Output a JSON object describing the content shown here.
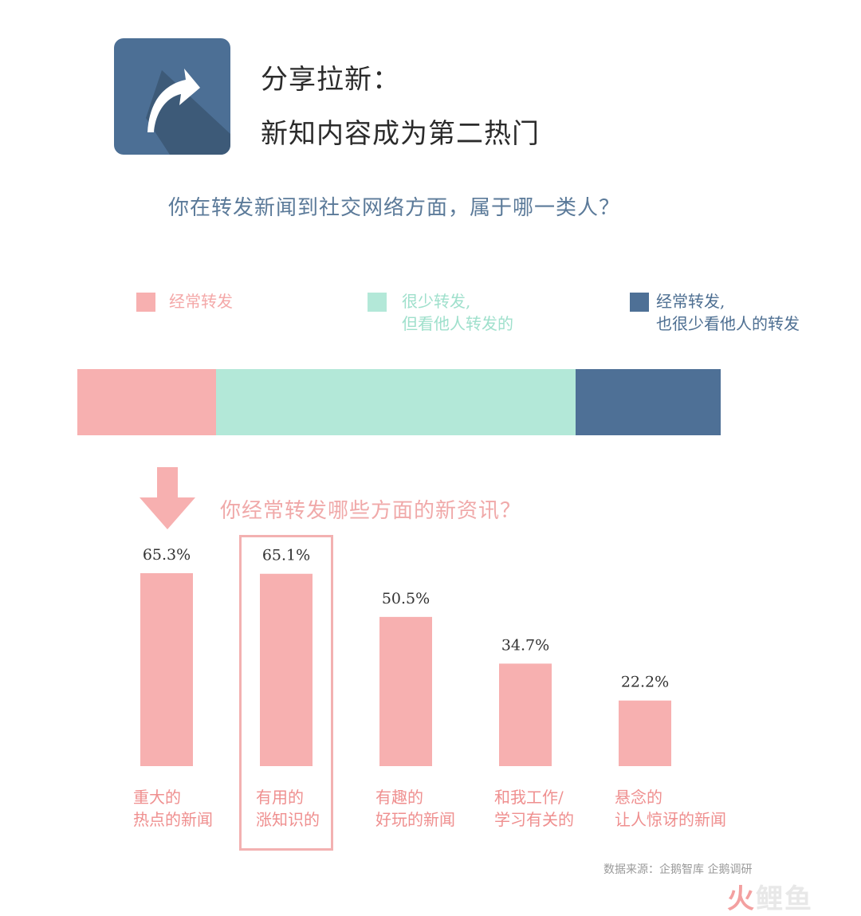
{
  "header": {
    "title_line1": "分享拉新：",
    "title_line2": "新知内容成为第二热门"
  },
  "question1": "你在转发新闻到社交网络方面，属于哪一类人？",
  "legend": [
    {
      "lines": [
        "经常转发"
      ],
      "color": "#f7b0b0",
      "text_color": "#f4a8a8"
    },
    {
      "lines": [
        "很少转发,",
        "但看他人转发的"
      ],
      "color": "#b3e8d8",
      "text_color": "#9fe0cc"
    },
    {
      "lines": [
        "经常转发,",
        "也很少看他人的转发"
      ],
      "color": "#4e7096",
      "text_color": "#4e6f92"
    }
  ],
  "question2": "你经常转发哪些方面的新资讯？",
  "colors": {
    "bar": "#f7b0b0",
    "highlight_border": "#f3b1b1"
  },
  "chart_data": [
    {
      "type": "bar",
      "orientation": "horizontal-stacked",
      "categories": [
        "经常转发",
        "很少转发,但看他人转发的",
        "经常转发,也很少看他人的转发"
      ],
      "values": [
        21.5,
        56,
        22.5
      ],
      "colors": [
        "#f7b0b0",
        "#b3e8d8",
        "#4e7096"
      ]
    },
    {
      "type": "bar",
      "categories": [
        "重大的\n热点的新闻",
        "有用的\n涨知识的",
        "有趣的\n好玩的新闻",
        "和我工作/\n学习有关的",
        "悬念的\n让人惊讶的新闻"
      ],
      "values": [
        65.3,
        65.1,
        50.5,
        34.7,
        22.2
      ],
      "value_labels": [
        "65.3%",
        "65.1%",
        "50.5%",
        "34.7%",
        "22.2%"
      ],
      "highlighted_index": 1,
      "ylim": [
        0,
        65.3
      ]
    }
  ],
  "source": "数据来源：企鹅智库 企鹅调研",
  "watermark": {
    "part1": "火",
    "part2": "鲤鱼"
  }
}
